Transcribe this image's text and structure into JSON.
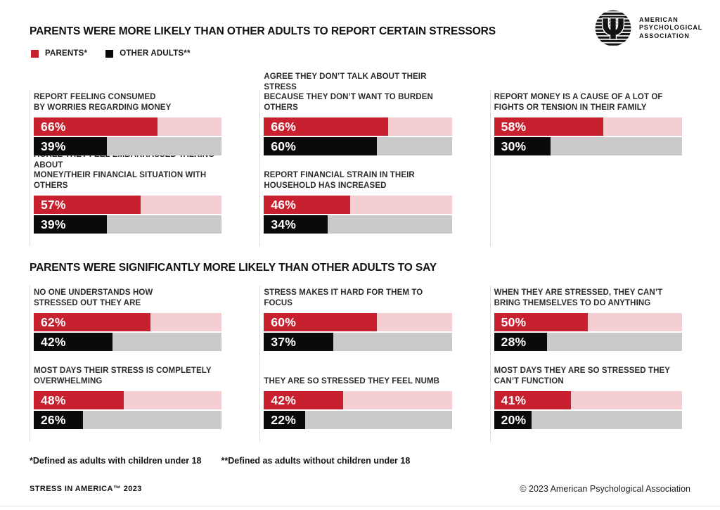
{
  "colors": {
    "parents": "#C8202F",
    "parents_track": "#F5CED3",
    "other": "#0A0A0A",
    "other_track": "#CACACA",
    "divider": "#DCDCDC",
    "label_text": "#2B2B2B"
  },
  "logo": {
    "org_lines": [
      "AMERICAN",
      "PSYCHOLOGICAL",
      "ASSOCIATION"
    ],
    "symbol": "psi"
  },
  "legend": {
    "items": [
      {
        "key": "parents",
        "label": "PARENTS*",
        "color": "#C8202F"
      },
      {
        "key": "other",
        "label": "OTHER ADULTS**",
        "color": "#0A0A0A"
      }
    ]
  },
  "chart_data": {
    "type": "bar",
    "unit": "percent",
    "xlim": [
      0,
      100
    ],
    "series": [
      "Parents",
      "Other adults"
    ],
    "legend_position": "top-left",
    "sections": [
      {
        "title": "PARENTS WERE MORE LIKELY THAN OTHER ADULTS TO REPORT CERTAIN STRESSORS",
        "rows": [
          [
            {
              "label_lines": [
                "REPORT FEELING CONSUMED",
                "BY WORRIES REGARDING MONEY"
              ],
              "parents": 66,
              "other": 39
            },
            {
              "label_lines": [
                "AGREE THEY DON’T TALK ABOUT THEIR STRESS",
                "BECAUSE THEY DON’T WANT TO BURDEN OTHERS"
              ],
              "parents": 66,
              "other": 60
            },
            {
              "label_lines": [
                "REPORT MONEY IS A CAUSE OF A LOT OF",
                "FIGHTS OR TENSION IN THEIR FAMILY"
              ],
              "parents": 58,
              "other": 30
            }
          ],
          [
            {
              "label_lines": [
                "AGREE THEY FEEL EMBARRASSED TALKING ABOUT",
                "MONEY/THEIR FINANCIAL SITUATION WITH OTHERS"
              ],
              "parents": 57,
              "other": 39
            },
            {
              "label_lines": [
                "REPORT FINANCIAL STRAIN IN THEIR",
                "HOUSEHOLD HAS INCREASED"
              ],
              "parents": 46,
              "other": 34
            },
            null
          ]
        ]
      },
      {
        "title": "PARENTS WERE SIGNIFICANTLY MORE LIKELY THAN OTHER ADULTS TO SAY",
        "rows": [
          [
            {
              "label_lines": [
                "NO ONE UNDERSTANDS HOW",
                "STRESSED OUT THEY ARE"
              ],
              "parents": 62,
              "other": 42
            },
            {
              "label_lines": [
                "STRESS MAKES IT HARD FOR THEM TO FOCUS"
              ],
              "parents": 60,
              "other": 37
            },
            {
              "label_lines": [
                "WHEN THEY ARE STRESSED, THEY CAN’T",
                "BRING THEMSELVES TO DO ANYTHING"
              ],
              "parents": 50,
              "other": 28
            }
          ],
          [
            {
              "label_lines": [
                "MOST DAYS THEIR STRESS IS COMPLETELY",
                "OVERWHELMING"
              ],
              "parents": 48,
              "other": 26
            },
            {
              "label_lines": [
                "THEY ARE SO STRESSED THEY FEEL NUMB"
              ],
              "parents": 42,
              "other": 22
            },
            {
              "label_lines": [
                "MOST DAYS THEY ARE SO STRESSED THEY",
                "CAN’T FUNCTION"
              ],
              "parents": 41,
              "other": 20
            }
          ]
        ]
      }
    ]
  },
  "footnotes": {
    "parents": "*Defined as adults with children under 18",
    "other": "**Defined as adults without children under 18"
  },
  "footer": {
    "left": "STRESS IN AMERICA™ 2023",
    "right": "© 2023 American Psychological Association"
  }
}
